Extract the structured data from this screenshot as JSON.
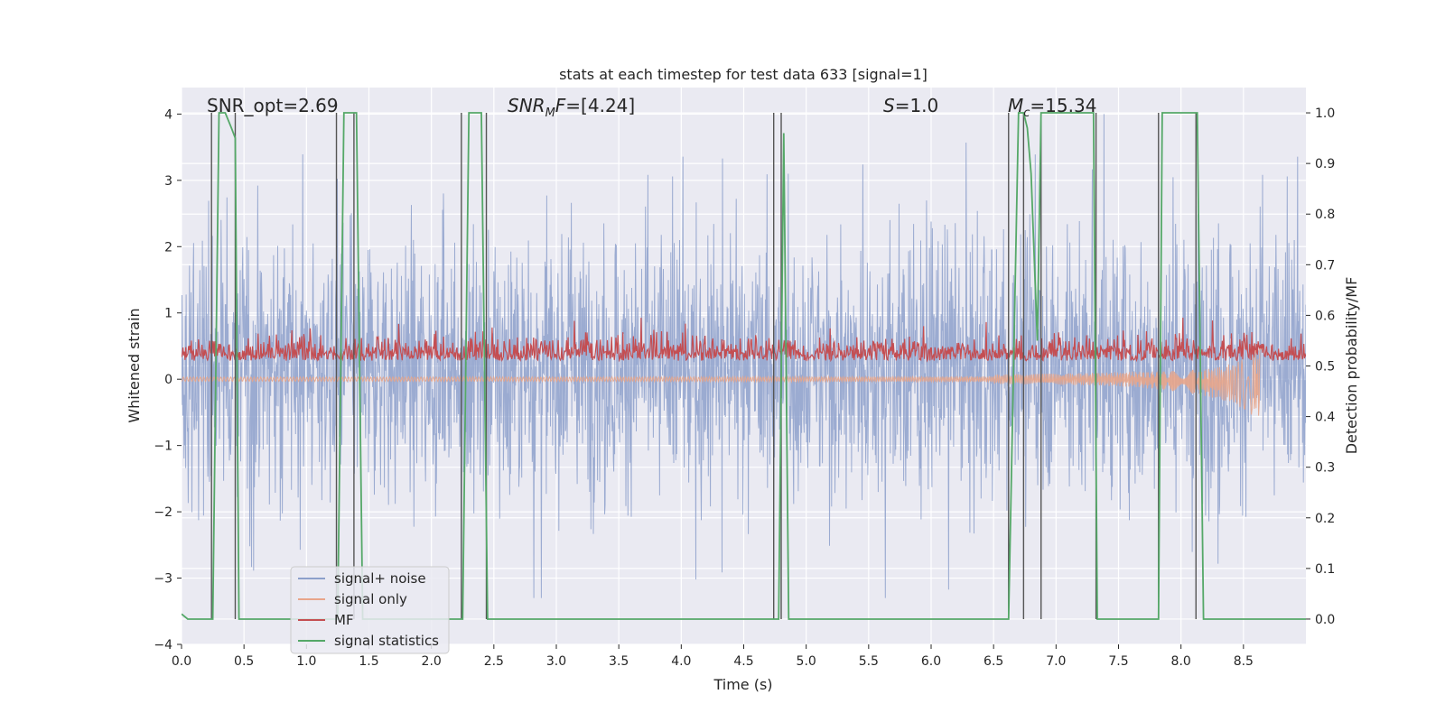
{
  "chart_data": {
    "type": "line",
    "title": "stats at each timestep for test data 633 [signal=1]",
    "xlabel": "Time (s)",
    "ylabel": "Whitened strain",
    "ylabel_right": "Detection probability/MF",
    "xlim": [
      0,
      9
    ],
    "ylim": [
      -4,
      4.4
    ],
    "ylim_right": [
      -0.05,
      1.05
    ],
    "xticks": [
      "0.0",
      "0.5",
      "1.0",
      "1.5",
      "2.0",
      "2.5",
      "3.0",
      "3.5",
      "4.0",
      "4.5",
      "5.0",
      "5.5",
      "6.0",
      "6.5",
      "7.0",
      "7.5",
      "8.0",
      "8.5"
    ],
    "xtick_values": [
      0,
      0.5,
      1,
      1.5,
      2,
      2.5,
      3,
      3.5,
      4,
      4.5,
      5,
      5.5,
      6,
      6.5,
      7,
      7.5,
      8,
      8.5
    ],
    "yticks": [
      "−4",
      "−3",
      "−2",
      "−1",
      "0",
      "1",
      "2",
      "3",
      "4"
    ],
    "ytick_values": [
      -4,
      -3,
      -2,
      -1,
      0,
      1,
      2,
      3,
      4
    ],
    "yticks_right": [
      "0.0",
      "0.1",
      "0.2",
      "0.3",
      "0.4",
      "0.5",
      "0.6",
      "0.7",
      "0.8",
      "0.9",
      "1.0"
    ],
    "ytick_values_right": [
      0,
      0.1,
      0.2,
      0.3,
      0.4,
      0.5,
      0.6,
      0.7,
      0.8,
      0.9,
      1.0
    ],
    "grid": true,
    "legend_placement": "lower-left",
    "annotations": {
      "snr_opt": "SNR_opt=2.69",
      "snr_mf_italic": "SNR",
      "snr_mf_sub": "M",
      "snr_mf_italic2": "F",
      "snr_mf_value": "=[4.24]",
      "s_symbol": "S",
      "s_value": "=1.0",
      "mc_symbol": "M",
      "mc_sub": "c",
      "mc_value": "=15.34"
    },
    "series": [
      {
        "name": "signal+ noise",
        "color": "#8da0cb",
        "note_range": [
          -3.3,
          4.0
        ],
        "typical_band": [
          -1.5,
          2.0
        ]
      },
      {
        "name": "signal only",
        "color": "#e8a58a",
        "chirp_end_time": 8.65,
        "chirp_min": -0.55
      },
      {
        "name": "MF",
        "color": "#c44e52",
        "typical_band": [
          0.0,
          0.8
        ]
      },
      {
        "name": "signal statistics",
        "color": "#55a868",
        "axis": "right",
        "x": [
          0.0,
          0.05,
          0.1,
          0.2,
          0.25,
          0.3,
          0.35,
          0.4,
          0.43,
          0.46,
          0.5,
          1.0,
          1.2,
          1.25,
          1.3,
          1.4,
          1.45,
          1.9,
          2.2,
          2.25,
          2.3,
          2.4,
          2.45,
          2.5,
          3.0,
          4.0,
          4.74,
          4.78,
          4.82,
          4.86,
          4.9,
          5.5,
          6.0,
          6.62,
          6.7,
          6.74,
          6.77,
          6.8,
          6.85,
          6.88,
          6.92,
          7.3,
          7.33,
          7.35,
          7.7,
          7.82,
          7.85,
          8.0,
          8.13,
          8.18,
          8.5,
          9.0
        ],
        "y": [
          0.01,
          0.0,
          0.0,
          0.0,
          0.0,
          1.0,
          1.0,
          0.97,
          0.95,
          0.0,
          0.0,
          0.0,
          0.0,
          0.0,
          1.0,
          1.0,
          0.0,
          0.0,
          0.0,
          0.0,
          1.0,
          1.0,
          0.0,
          0.0,
          0.0,
          0.0,
          0.0,
          0.0,
          0.96,
          0.0,
          0.0,
          0.0,
          0.0,
          0.0,
          1.0,
          1.0,
          0.97,
          0.88,
          0.55,
          1.0,
          1.0,
          1.0,
          0.0,
          0.0,
          0.0,
          0.0,
          1.0,
          1.0,
          1.0,
          0.0,
          0.0,
          0.0
        ]
      },
      {
        "name": "detection markers",
        "color": "#555555",
        "axis": "right",
        "x": [
          0.24,
          0.43,
          1.24,
          1.38,
          2.24,
          2.44,
          4.74,
          4.8,
          6.62,
          6.74,
          6.88,
          7.32,
          7.82,
          8.12
        ],
        "ytop": [
          1.0,
          1.0,
          1.0,
          1.0,
          1.0,
          1.0,
          1.0,
          1.0,
          1.0,
          1.0,
          1.0,
          1.0,
          1.0,
          1.0
        ],
        "ybottom": [
          0.0,
          0.0,
          0.0,
          0.0,
          0.0,
          0.0,
          0.0,
          0.0,
          0.0,
          0.0,
          0.0,
          0.0,
          0.0,
          0.0
        ]
      }
    ]
  },
  "legend": {
    "items": [
      {
        "label": "signal+ noise",
        "color": "#8da0cb"
      },
      {
        "label": "signal only",
        "color": "#e8a58a"
      },
      {
        "label": "MF",
        "color": "#c44e52"
      },
      {
        "label": "signal statistics",
        "color": "#55a868"
      }
    ]
  },
  "colors": {
    "plot_background": "#eaeaf2",
    "grid": "#ffffff",
    "text": "#262626"
  }
}
